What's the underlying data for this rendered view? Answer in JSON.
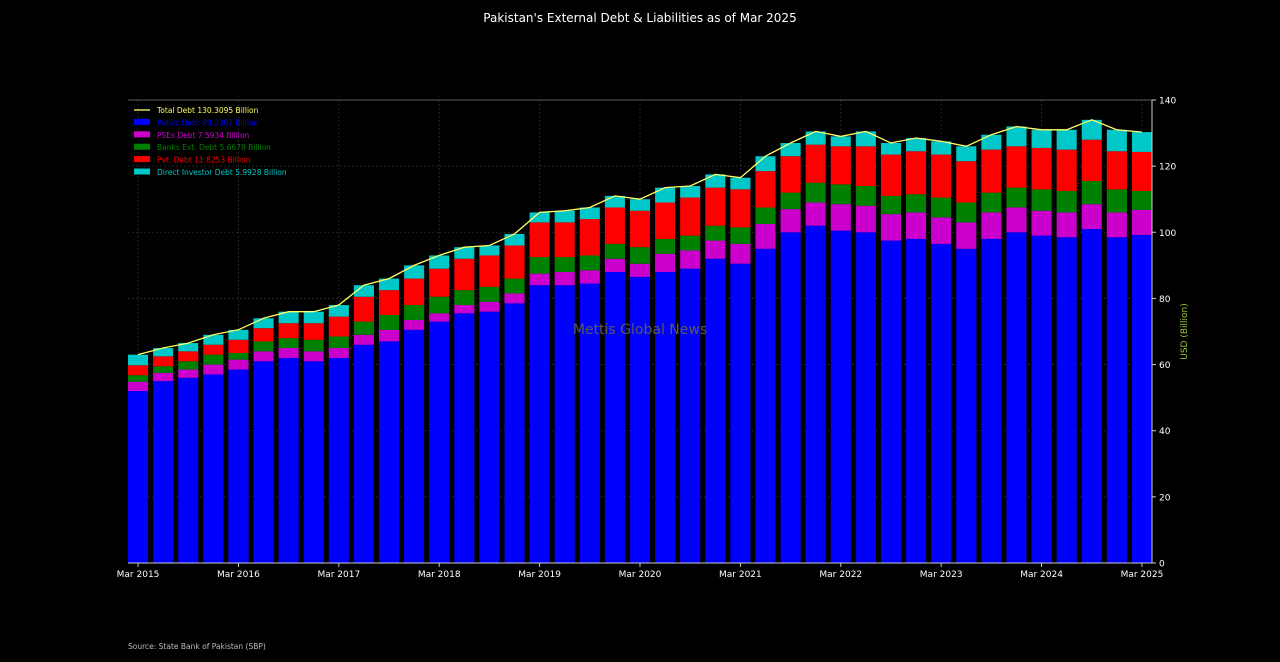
{
  "chart_data": {
    "type": "bar",
    "title": "Pakistan's External Debt & Liabilities as of Mar 2025",
    "ylabel": "USD (Billion)",
    "xlabel": "",
    "ylim": [
      0,
      140
    ],
    "yticks": [
      0,
      20,
      40,
      60,
      80,
      100,
      120,
      140
    ],
    "y_axis_side": "right",
    "grid": true,
    "legend_position": "top-left",
    "watermark": "Mettis Global News",
    "source": "Source: State Bank of Pakistan (SBP)",
    "x_tick_labels": [
      "Mar 2015",
      "Mar 2016",
      "Mar 2017",
      "Mar 2018",
      "Mar 2019",
      "Mar 2020",
      "Mar 2021",
      "Mar 2022",
      "Mar 2023",
      "Mar 2024",
      "Mar 2025"
    ],
    "categories": [
      "Mar 2015",
      "Jun 2015",
      "Sep 2015",
      "Dec 2015",
      "Mar 2016",
      "Jun 2016",
      "Sep 2016",
      "Dec 2016",
      "Mar 2017",
      "Jun 2017",
      "Sep 2017",
      "Dec 2017",
      "Mar 2018",
      "Jun 2018",
      "Sep 2018",
      "Dec 2018",
      "Mar 2019",
      "Jun 2019",
      "Sep 2019",
      "Dec 2019",
      "Mar 2020",
      "Jun 2020",
      "Sep 2020",
      "Dec 2020",
      "Mar 2021",
      "Jun 2021",
      "Sep 2021",
      "Dec 2021",
      "Mar 2022",
      "Jun 2022",
      "Sep 2022",
      "Dec 2022",
      "Mar 2023",
      "Jun 2023",
      "Sep 2023",
      "Dec 2023",
      "Mar 2024",
      "Jun 2024",
      "Sep 2024",
      "Dec 2024",
      "Mar 2025"
    ],
    "total": {
      "name": "Total Debt 130.3095 Billion",
      "color": "#ffff66",
      "values": [
        63,
        65,
        66.5,
        69,
        70.5,
        74,
        76,
        76,
        78,
        84,
        86,
        90,
        93,
        95.5,
        96,
        99.5,
        106,
        106.5,
        107.5,
        111,
        110,
        113.5,
        114,
        117.5,
        116.5,
        123,
        127,
        130.5,
        129,
        130.5,
        127,
        128.5,
        127.5,
        126,
        129.5,
        132,
        131,
        131,
        134,
        131,
        130.3
      ]
    },
    "series": [
      {
        "name": "Public Debt 99.2307 Billion",
        "color": "#0000ff",
        "values": [
          52,
          55,
          56,
          57,
          58.5,
          61,
          62,
          61,
          62,
          66,
          67,
          70.5,
          73,
          75.5,
          76,
          78.5,
          84,
          84,
          84.5,
          88,
          86.5,
          88,
          89,
          92,
          90.5,
          95,
          100,
          102,
          100.5,
          100,
          97.5,
          98,
          96.5,
          95,
          98,
          100,
          99,
          98.5,
          101,
          98.5,
          99.2
        ]
      },
      {
        "name": "PSEs Debt 7.5934 Billion",
        "color": "#cc00cc",
        "values": [
          2.8,
          2.5,
          2.5,
          3,
          3,
          3,
          3,
          3,
          3,
          3,
          3.5,
          3,
          2.5,
          2.5,
          3,
          3,
          3.5,
          4,
          4,
          4,
          4,
          5.5,
          5.5,
          5.5,
          6,
          7.5,
          7,
          7,
          8,
          8,
          8,
          8,
          8,
          8,
          8,
          7.5,
          7.5,
          7.5,
          7.5,
          7.5,
          7.6
        ]
      },
      {
        "name": "Banks Ext. Debt 5.6678 Billion",
        "color": "#008000",
        "values": [
          2,
          2,
          2.5,
          3,
          2,
          3,
          3,
          3.5,
          3.5,
          4,
          4.5,
          4.5,
          5,
          4.5,
          4.5,
          4.5,
          5,
          4.5,
          4.5,
          4.5,
          5,
          4.5,
          4.5,
          4.5,
          5,
          5,
          5,
          6,
          6,
          6,
          5.5,
          5.5,
          6,
          6,
          6,
          6,
          6.5,
          6.5,
          7,
          7,
          5.7
        ]
      },
      {
        "name": "Pvt. Debt 11.8253 Billion",
        "color": "#ff0000",
        "values": [
          3,
          3,
          3,
          3,
          4,
          4,
          4.5,
          5,
          6,
          7.5,
          7.5,
          8,
          8.5,
          9.5,
          9.5,
          10,
          10.5,
          10.5,
          11,
          11,
          11,
          11,
          11.5,
          11.5,
          11.5,
          11,
          11,
          11.5,
          11.5,
          12,
          12.5,
          13,
          13,
          12.5,
          13,
          12.5,
          12.5,
          12.5,
          12.5,
          11.5,
          11.8
        ]
      },
      {
        "name": "Direct Investor Debt 5.9928 Billion",
        "color": "#00c8c8",
        "values": [
          3.2,
          2.5,
          2.5,
          3,
          3,
          3,
          3.5,
          3.5,
          3.5,
          3.5,
          3.5,
          4,
          4,
          3.5,
          3,
          3.5,
          3,
          3.5,
          3.5,
          3.5,
          3.5,
          4.5,
          3.5,
          4,
          3.5,
          4.5,
          4,
          4,
          3,
          4.5,
          3.5,
          4,
          4,
          4.5,
          4.5,
          6,
          5.5,
          6,
          6,
          6.5,
          6
        ]
      }
    ]
  }
}
